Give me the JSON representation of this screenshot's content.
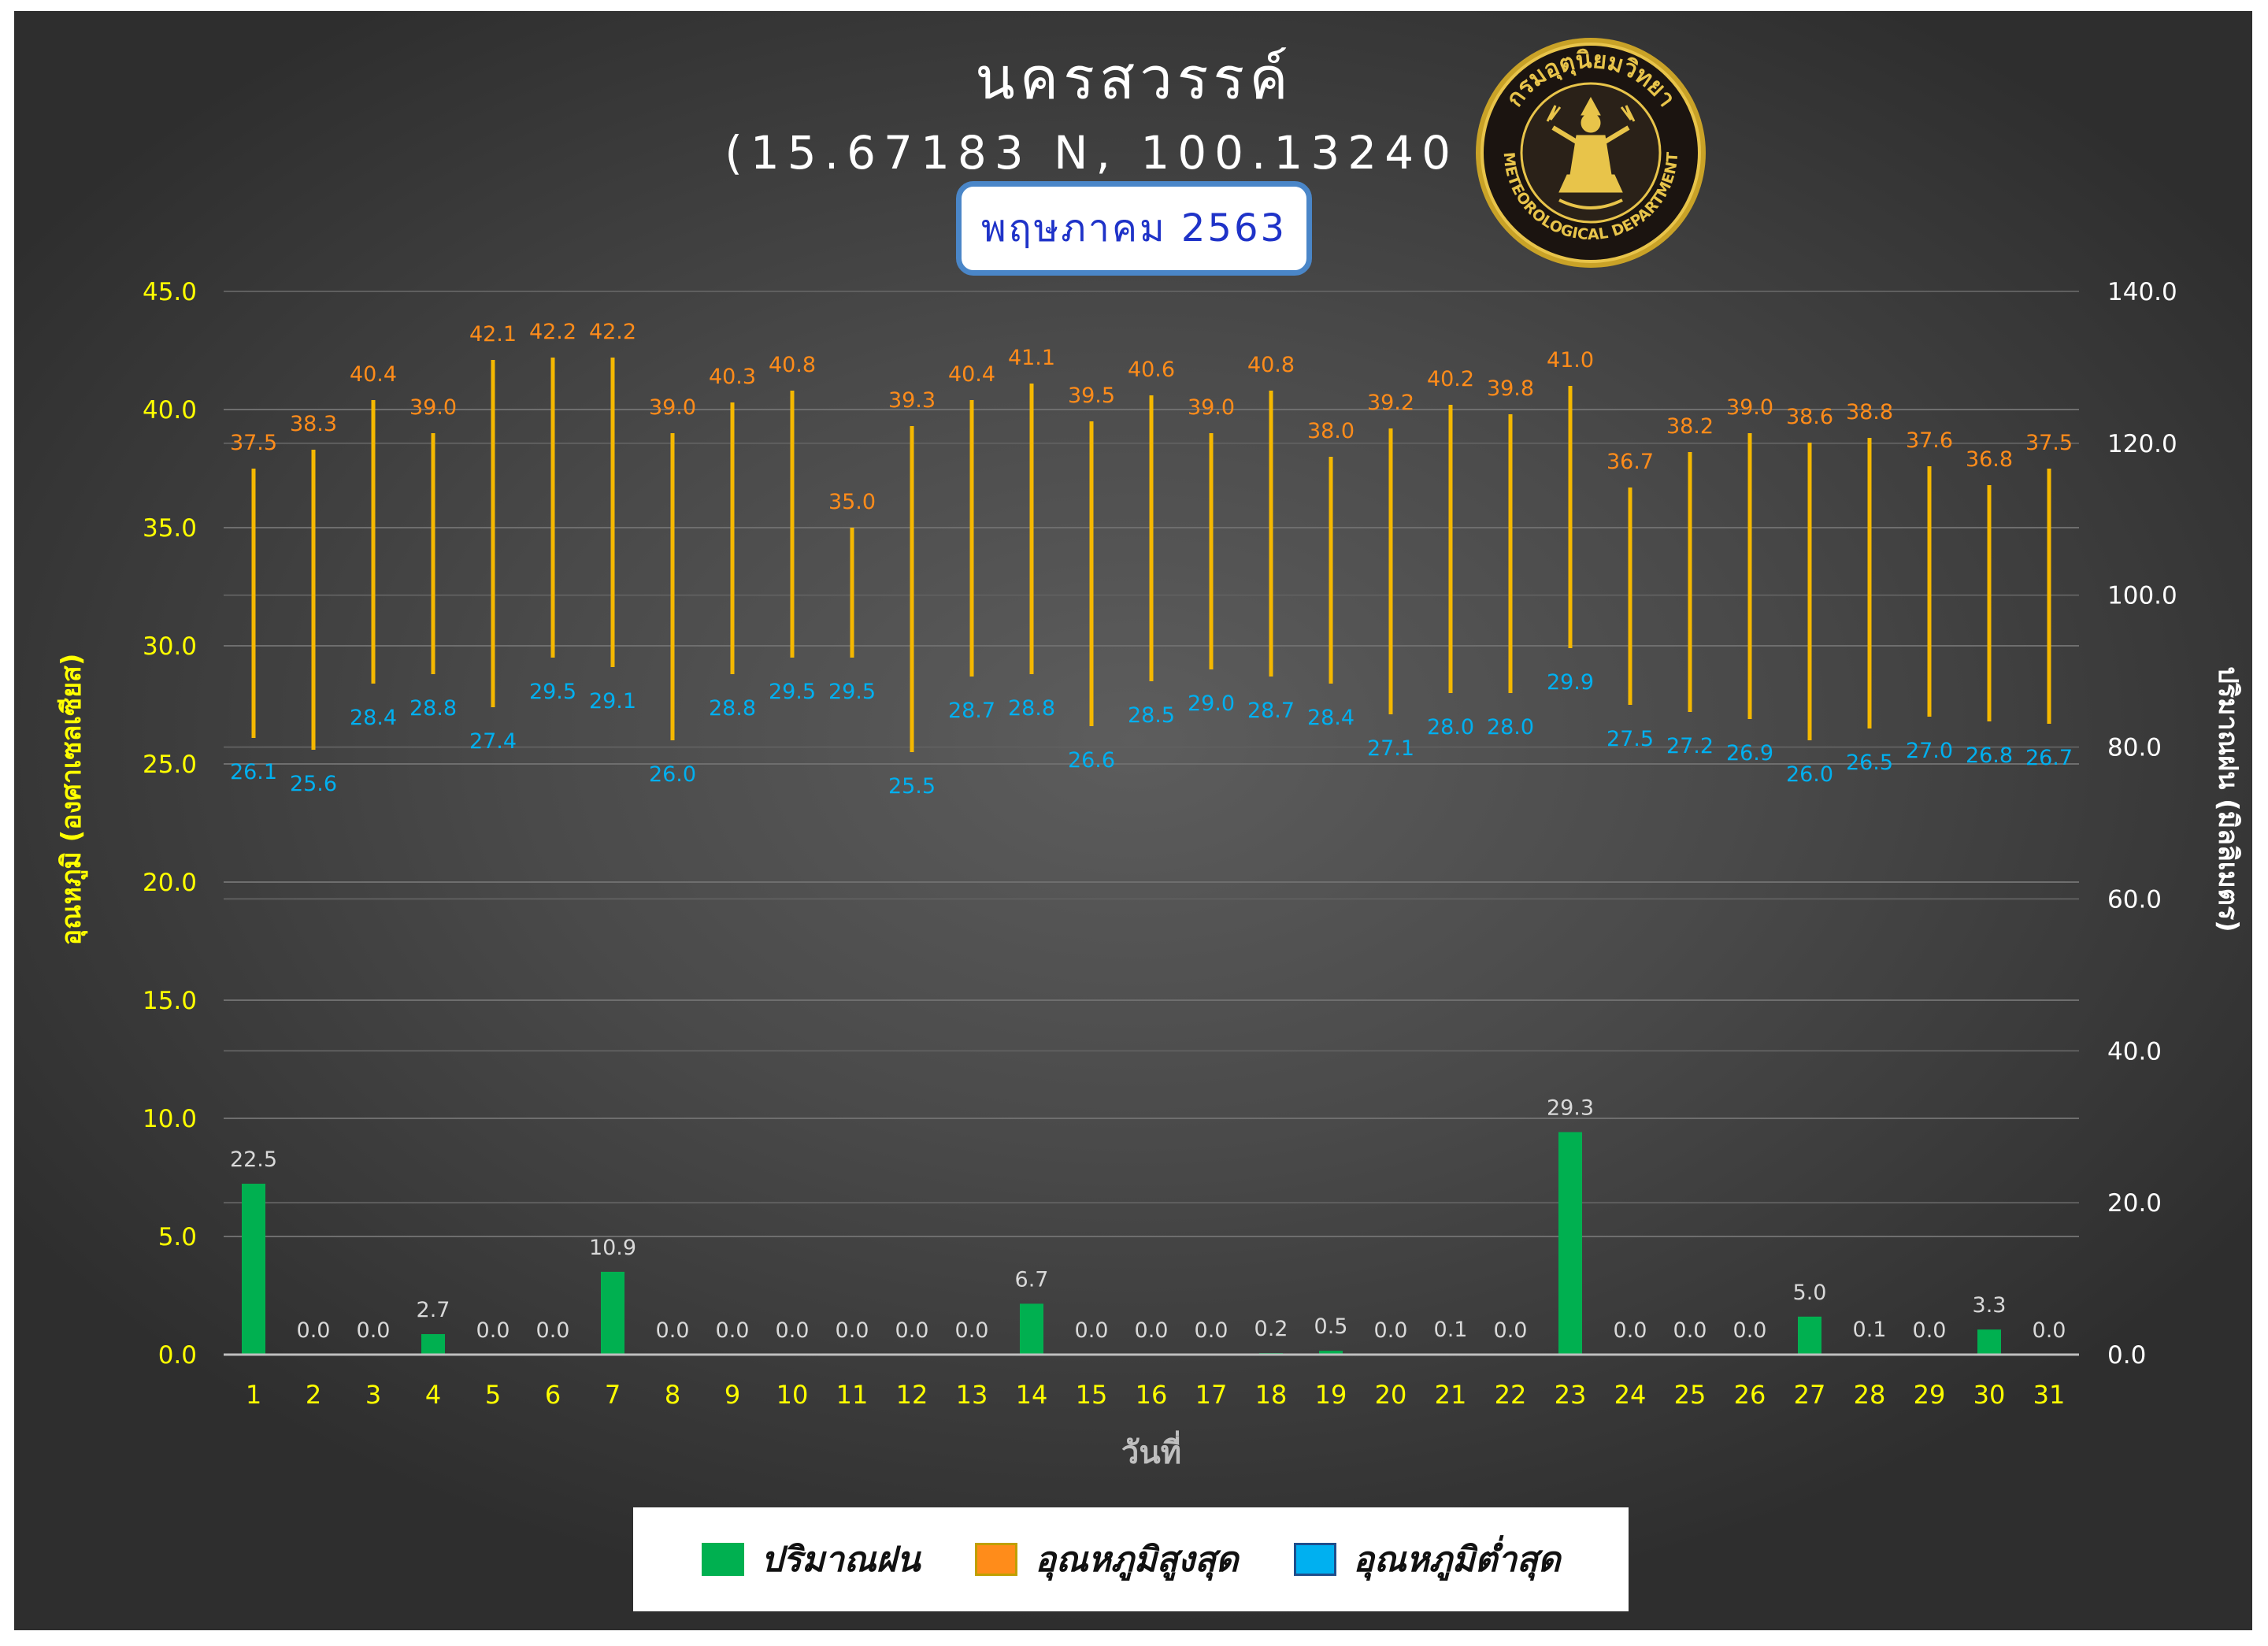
{
  "header": {
    "title": "นครสวรรค์",
    "coords": "(15.67183 N, 100.13240 E)",
    "month": "พฤษภาคม 2563"
  },
  "seal": {
    "text_top": "กรมอุตุนิยมวิทยา",
    "text_bottom": "METEOROLOGICAL DEPARTMENT"
  },
  "legend": {
    "rain": "ปริมาณฝน",
    "tmax": "อุณหภูมิสูงสุด",
    "tmin": "อุณหภูมิต่ำสุด"
  },
  "colors": {
    "rain": "#00b050",
    "tmax": "#ff8c1a",
    "tmin": "#00b0f0",
    "range_bar": "#f5b800",
    "left_axis": "#ffff00",
    "right_axis": "#ffffff"
  },
  "chart_data": {
    "type": "bar",
    "xlabel": "วันที่",
    "ylabel_left": "อุณหภูมิ (องศาเซลเซียส)",
    "ylabel_right": "ปริมาณฝน (มิลลิเมตร)",
    "ylim_left": [
      0,
      45
    ],
    "ylim_right": [
      0,
      140
    ],
    "left_ticks": [
      "0.0",
      "5.0",
      "10.0",
      "15.0",
      "20.0",
      "25.0",
      "30.0",
      "35.0",
      "40.0",
      "45.0"
    ],
    "right_ticks": [
      "0.0",
      "20.0",
      "40.0",
      "60.0",
      "80.0",
      "100.0",
      "120.0",
      "140.0"
    ],
    "categories": [
      "1",
      "2",
      "3",
      "4",
      "5",
      "6",
      "7",
      "8",
      "9",
      "10",
      "11",
      "12",
      "13",
      "14",
      "15",
      "16",
      "17",
      "18",
      "19",
      "20",
      "21",
      "22",
      "23",
      "24",
      "25",
      "26",
      "27",
      "28",
      "29",
      "30",
      "31"
    ],
    "series": [
      {
        "name": "ปริมาณฝน",
        "type": "bar",
        "axis": "right",
        "values": [
          22.5,
          0.0,
          0.0,
          2.7,
          0.0,
          0.0,
          10.9,
          0.0,
          0.0,
          0.0,
          0.0,
          0.0,
          0.0,
          6.7,
          0.0,
          0.0,
          0.0,
          0.2,
          0.5,
          0.0,
          0.1,
          0.0,
          29.3,
          0.0,
          0.0,
          0.0,
          5.0,
          0.1,
          0.0,
          3.3,
          0.0
        ]
      },
      {
        "name": "อุณหภูมิสูงสุด",
        "type": "range-high",
        "axis": "left",
        "values": [
          37.5,
          38.3,
          40.4,
          39.0,
          42.1,
          42.2,
          42.2,
          39.0,
          40.3,
          40.8,
          35.0,
          39.3,
          40.4,
          41.1,
          39.5,
          40.6,
          39.0,
          40.8,
          38.0,
          39.2,
          40.2,
          39.8,
          41.0,
          36.7,
          38.2,
          39.0,
          38.6,
          38.8,
          37.6,
          36.8,
          37.5
        ]
      },
      {
        "name": "อุณหภูมิต่ำสุด",
        "type": "range-low",
        "axis": "left",
        "values": [
          26.1,
          25.6,
          28.4,
          28.8,
          27.4,
          29.5,
          29.1,
          26.0,
          28.8,
          29.5,
          29.5,
          25.5,
          28.7,
          28.8,
          26.6,
          28.5,
          29.0,
          28.7,
          28.4,
          27.1,
          28.0,
          28.0,
          29.9,
          27.5,
          27.2,
          26.9,
          26.0,
          26.5,
          27.0,
          26.8,
          26.7
        ]
      }
    ],
    "grid": true
  }
}
